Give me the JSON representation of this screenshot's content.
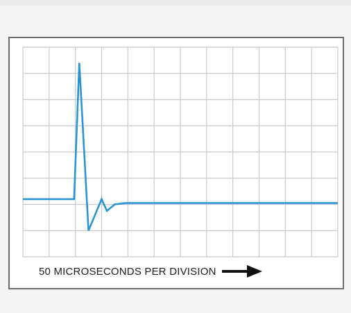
{
  "colors": {
    "trace": "#2b95d3",
    "grid": "#c8c8c8",
    "frame": "#6b6b6b",
    "screen": "#ffffff",
    "arrow": "#111111"
  },
  "caption": {
    "text": "50 MICROSECONDS PER DIVISION",
    "arrow_icon": "right-arrow-icon"
  },
  "chart_data": {
    "type": "line",
    "title": "",
    "xlabel": "50 MICROSECONDS PER DIVISION",
    "ylabel": "",
    "xlim": [
      0,
      12
    ],
    "ylim": [
      0,
      8
    ],
    "grid": true,
    "grid_divisions": {
      "x": 12,
      "y": 8
    },
    "series": [
      {
        "values": [
          [
            0,
            2.2
          ],
          [
            1.95,
            2.2
          ],
          [
            2.15,
            7.4
          ],
          [
            2.5,
            1.0
          ],
          [
            3.0,
            2.2
          ],
          [
            3.2,
            1.75
          ],
          [
            3.5,
            2.0
          ],
          [
            3.9,
            2.05
          ],
          [
            12,
            2.05
          ]
        ]
      }
    ]
  }
}
